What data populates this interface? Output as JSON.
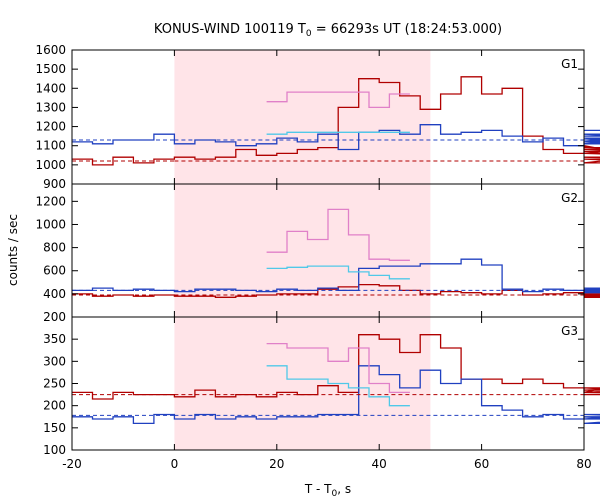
{
  "title": {
    "prefix": "KONUS-WIND 100119 T",
    "sub": "0",
    "suffix": " = 66293s UT (18:24:53.000)"
  },
  "ylabel": "counts / sec",
  "xlabel": {
    "prefix": "T - T",
    "sub": "0",
    "suffix": ", s"
  },
  "colors": {
    "dark_red": "#b00000",
    "blue": "#2040c0",
    "pink": "#e080c8",
    "light_blue": "#50c8e8",
    "highlight": "#ffe4e8"
  },
  "chart_data": {
    "type": "line",
    "step": true,
    "bin_width_s": 4.0,
    "x_range": [
      -20,
      80
    ],
    "x_ticks": [
      -20,
      0,
      20,
      40,
      60,
      80
    ],
    "shaded_interval": [
      0,
      50
    ],
    "panels": [
      {
        "label": "G1",
        "ylim": [
          900,
          1600
        ],
        "y_ticks": [
          900,
          1000,
          1100,
          1200,
          1300,
          1400,
          1500,
          1600
        ],
        "series": [
          {
            "color": "dark_red",
            "style": "step",
            "values": [
              1030,
              1000,
              1040,
              1010,
              1030,
              1040,
              1030,
              1040,
              1080,
              1050,
              1060,
              1080,
              1090,
              1300,
              1450,
              1430,
              1360,
              1290,
              1370,
              1460,
              1370,
              1400,
              1150,
              1080,
              1060,
              1100,
              1080,
              1070,
              1040,
              1030,
              1010,
              1080,
              1090,
              1060,
              1030
            ]
          },
          {
            "color": "blue",
            "style": "step",
            "values": [
              1120,
              1110,
              1130,
              1130,
              1160,
              1110,
              1130,
              1120,
              1100,
              1110,
              1140,
              1120,
              1160,
              1080,
              1170,
              1180,
              1160,
              1210,
              1160,
              1170,
              1180,
              1150,
              1120,
              1140,
              1100,
              1120,
              1130,
              1140,
              1110,
              1150,
              1160,
              1140,
              1120,
              1150,
              1180
            ]
          },
          {
            "color": "pink",
            "style": "step",
            "start": 18,
            "end": 46,
            "values": [
              1330,
              1380,
              1380,
              1380,
              1380,
              1300,
              1370
            ]
          },
          {
            "color": "light_blue",
            "style": "step",
            "start": 18,
            "end": 46,
            "values": [
              1160,
              1170,
              1170,
              1170,
              1170,
              1170,
              1170
            ]
          }
        ],
        "baselines": [
          {
            "color": "blue",
            "value": 1130,
            "segments": [
              [
                -20,
                0
              ],
              [
                0,
                80
              ]
            ]
          },
          {
            "color": "dark_red",
            "value": 1020,
            "segments": [
              [
                -20,
                0
              ],
              [
                0,
                80
              ]
            ]
          }
        ]
      },
      {
        "label": "G2",
        "ylim": [
          200,
          1350
        ],
        "y_ticks": [
          200,
          400,
          600,
          800,
          1000,
          1200
        ],
        "series": [
          {
            "color": "dark_red",
            "style": "step",
            "values": [
              400,
              380,
              390,
              380,
              390,
              380,
              380,
              370,
              380,
              390,
              400,
              400,
              440,
              460,
              480,
              470,
              430,
              400,
              420,
              410,
              400,
              430,
              390,
              400,
              410,
              390,
              380,
              400,
              380,
              390,
              380,
              370,
              380,
              400,
              400
            ]
          },
          {
            "color": "blue",
            "style": "step",
            "values": [
              430,
              450,
              430,
              440,
              430,
              420,
              440,
              440,
              430,
              420,
              440,
              430,
              450,
              430,
              620,
              640,
              640,
              660,
              660,
              700,
              650,
              440,
              420,
              440,
              430,
              420,
              440,
              450,
              430,
              420,
              410,
              440,
              430,
              420,
              410
            ]
          },
          {
            "color": "pink",
            "style": "step",
            "start": 18,
            "end": 46,
            "values": [
              760,
              940,
              870,
              1130,
              910,
              700,
              690
            ]
          },
          {
            "color": "light_blue",
            "style": "step",
            "start": 18,
            "end": 46,
            "values": [
              620,
              630,
              640,
              640,
              590,
              560,
              530
            ]
          }
        ],
        "baselines": [
          {
            "color": "blue",
            "value": 430,
            "segments": [
              [
                -20,
                0
              ],
              [
                0,
                80
              ]
            ]
          },
          {
            "color": "dark_red",
            "value": 390,
            "segments": [
              [
                -20,
                0
              ],
              [
                0,
                80
              ]
            ]
          }
        ]
      },
      {
        "label": "G3",
        "ylim": [
          100,
          400
        ],
        "y_ticks": [
          100,
          150,
          200,
          250,
          300,
          350
        ],
        "series": [
          {
            "color": "dark_red",
            "style": "step",
            "values": [
              230,
              215,
              230,
              225,
              225,
              220,
              235,
              220,
              225,
              220,
              230,
              225,
              245,
              230,
              360,
              350,
              320,
              360,
              330,
              260,
              260,
              250,
              260,
              250,
              240,
              230,
              240,
              235,
              240,
              230,
              240,
              230,
              225,
              230,
              230
            ]
          },
          {
            "color": "blue",
            "style": "step",
            "values": [
              175,
              170,
              175,
              160,
              180,
              170,
              180,
              170,
              175,
              170,
              175,
              175,
              180,
              180,
              290,
              270,
              240,
              280,
              250,
              260,
              200,
              190,
              175,
              180,
              170,
              175,
              175,
              170,
              180,
              175,
              160,
              180,
              175,
              170,
              175
            ]
          },
          {
            "color": "pink",
            "style": "step",
            "start": 18,
            "end": 46,
            "values": [
              340,
              330,
              330,
              300,
              330,
              250,
              230
            ]
          },
          {
            "color": "light_blue",
            "style": "step",
            "start": 18,
            "end": 46,
            "values": [
              290,
              260,
              260,
              250,
              240,
              220,
              200
            ]
          }
        ],
        "baselines": [
          {
            "color": "blue",
            "value": 178,
            "segments": [
              [
                -20,
                0
              ],
              [
                0,
                80
              ]
            ]
          },
          {
            "color": "dark_red",
            "value": 225,
            "segments": [
              [
                -20,
                0
              ],
              [
                0,
                80
              ]
            ]
          }
        ]
      }
    ]
  }
}
